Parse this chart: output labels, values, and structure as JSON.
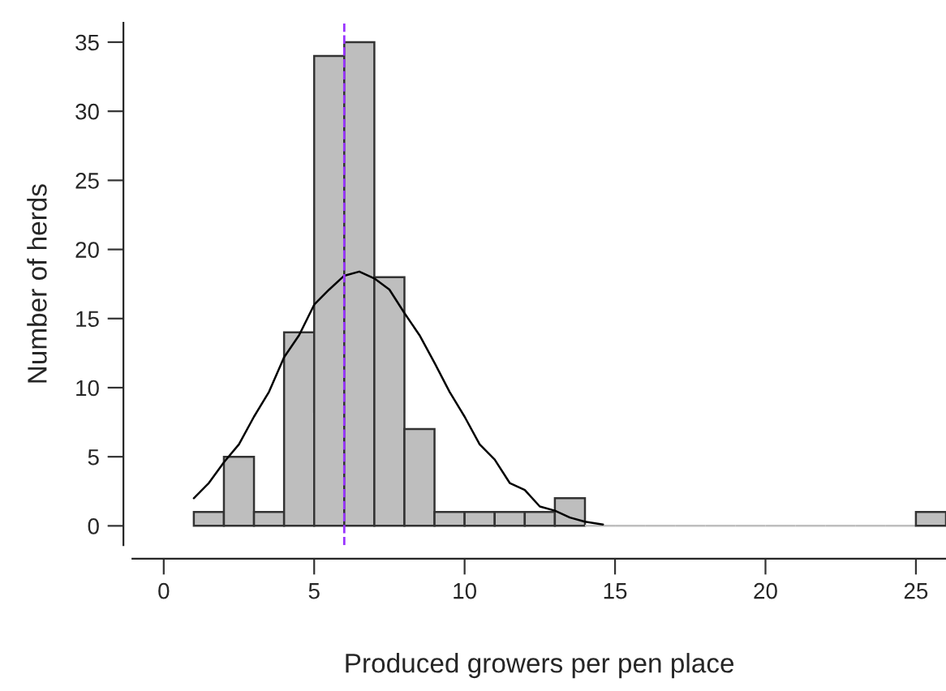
{
  "chart_data": {
    "type": "histogram",
    "xlabel": "Produced growers per pen place",
    "ylabel": "Number of herds",
    "bins": [
      1,
      2,
      3,
      4,
      5,
      6,
      7,
      8,
      9,
      10,
      11,
      12,
      13,
      14,
      15,
      16,
      17,
      18,
      19,
      20,
      21,
      22,
      23,
      24,
      25,
      26
    ],
    "values": [
      1,
      5,
      1,
      14,
      34,
      35,
      18,
      7,
      1,
      1,
      1,
      1,
      2,
      0,
      0,
      0,
      0,
      0,
      0,
      0,
      0,
      0,
      0,
      0,
      1
    ],
    "color": "#bebebe",
    "series": [
      {
        "type": "line",
        "color": "#000000",
        "x": [
          1,
          1.5,
          2,
          2.5,
          3,
          3.5,
          4,
          4.5,
          5,
          5.5,
          6,
          6.5,
          7,
          7.5,
          8,
          8.5,
          9,
          9.5,
          10,
          10.5,
          11,
          11.5,
          12,
          12.5,
          13,
          13.5,
          14,
          14.6
        ],
        "values": [
          2.0,
          3.1,
          4.6,
          5.9,
          7.9,
          9.7,
          12.2,
          13.8,
          16.0,
          17.1,
          18.1,
          18.4,
          17.9,
          17.1,
          15.4,
          13.8,
          11.8,
          9.7,
          7.9,
          5.9,
          4.8,
          3.1,
          2.6,
          1.4,
          1.1,
          0.6,
          0.3,
          0.1
        ]
      }
    ],
    "ref_lines": [
      {
        "axis": "x",
        "value": 6,
        "color": "#9933ff",
        "line_style": "dashed"
      }
    ],
    "xlim": [
      -1.04,
      26
    ],
    "ylim": [
      -1.4,
      36.4
    ],
    "xticks": [
      0,
      5,
      10,
      15,
      20,
      25
    ],
    "yticks": [
      0,
      5,
      10,
      15,
      20,
      25,
      30,
      35
    ],
    "grid": false
  }
}
